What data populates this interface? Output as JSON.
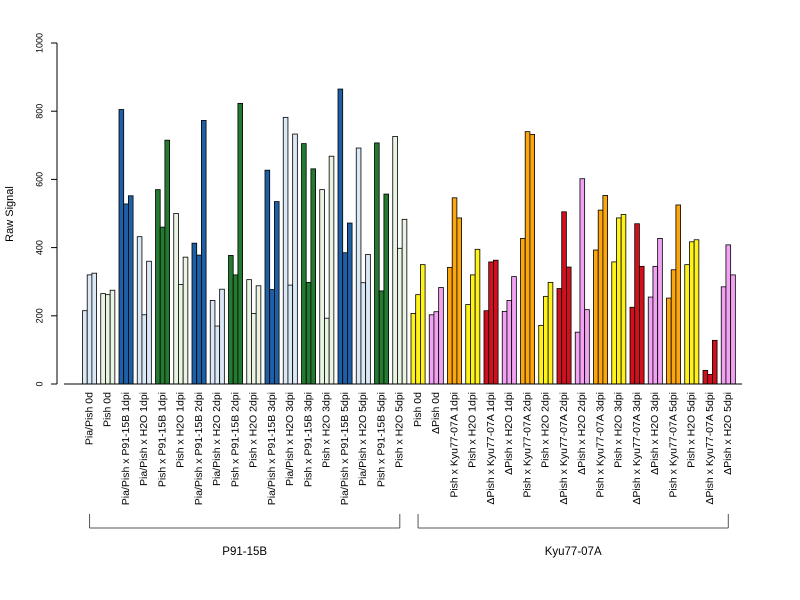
{
  "chart_data": {
    "type": "bar",
    "ylabel": "Raw Signal",
    "ylim": [
      0,
      1000
    ],
    "yticks": [
      "0",
      "200",
      "400",
      "600",
      "800",
      "1000"
    ],
    "grid": false,
    "legend": "none",
    "colors": {
      "light_blue": "#dbe8f6",
      "dark_blue": "#1f5fa6",
      "dark_green": "#247a31",
      "light_green": "#e9f4e3",
      "yellow": "#fff21a",
      "violet": "#f2a2f2",
      "orange": "#fca60e",
      "red": "#d1101d"
    },
    "categories": [
      {
        "label": "Pia/Pish 0d",
        "values": [
          215,
          320,
          325
        ],
        "color": "light_blue"
      },
      {
        "label": "Pish 0d",
        "values": [
          265,
          262,
          275
        ],
        "color": "light_green"
      },
      {
        "label": "Pia/Pish x P91-15B 1dpi",
        "values": [
          805,
          528,
          552
        ],
        "color": "dark_blue"
      },
      {
        "label": "Pia/Pish x H2O 1dpi",
        "values": [
          432,
          203,
          360
        ],
        "color": "light_blue"
      },
      {
        "label": "Pish x P91-15B 1dpi",
        "values": [
          570,
          460,
          715
        ],
        "color": "dark_green"
      },
      {
        "label": "Pish x H2O 1dpi",
        "values": [
          500,
          292,
          372
        ],
        "color": "light_green"
      },
      {
        "label": "Pia/Pish x P91-15B 2dpi",
        "values": [
          413,
          378,
          773
        ],
        "color": "dark_blue"
      },
      {
        "label": "Pia/Pish x H2O 2dpi",
        "values": [
          245,
          170,
          278
        ],
        "color": "light_blue"
      },
      {
        "label": "Pish x P91-15B 2dpi",
        "values": [
          377,
          320,
          823
        ],
        "color": "dark_green"
      },
      {
        "label": "Pish x H2O 2dpi",
        "values": [
          306,
          207,
          288
        ],
        "color": "light_green"
      },
      {
        "label": "Pia/Pish x P91-15B 3dpi",
        "values": [
          627,
          277,
          535
        ],
        "color": "dark_blue"
      },
      {
        "label": "Pia/Pish x H2O 3dpi",
        "values": [
          782,
          290,
          733
        ],
        "color": "light_blue"
      },
      {
        "label": "Pish x P91-15B 3dpi",
        "values": [
          705,
          298,
          631
        ],
        "color": "dark_green"
      },
      {
        "label": "Pish x H2O 3dpi",
        "values": [
          570,
          193,
          668
        ],
        "color": "light_green"
      },
      {
        "label": "Pia/Pish x P91-15B 5dpi",
        "values": [
          865,
          385,
          472
        ],
        "color": "dark_blue"
      },
      {
        "label": "Pia/Pish x H2O 5dpi",
        "values": [
          692,
          297,
          380
        ],
        "color": "light_blue"
      },
      {
        "label": "Pish x P91-15B 5dpi",
        "values": [
          707,
          273,
          557
        ],
        "color": "dark_green"
      },
      {
        "label": "Pish x H2O 5dpi",
        "values": [
          726,
          398,
          483
        ],
        "color": "light_green"
      },
      {
        "label": "Pish 0d",
        "values": [
          207,
          262,
          350
        ],
        "color": "yellow"
      },
      {
        "label": "ΔPish 0d",
        "values": [
          203,
          212,
          283
        ],
        "color": "violet"
      },
      {
        "label": "Pish x Kyu77-07A 1dpi",
        "values": [
          342,
          546,
          487
        ],
        "color": "orange"
      },
      {
        "label": "Pish x H2O 1dpi",
        "values": [
          233,
          320,
          395
        ],
        "color": "yellow"
      },
      {
        "label": "ΔPish x Kyu77-07A 1dpi",
        "values": [
          215,
          358,
          363
        ],
        "color": "red"
      },
      {
        "label": "ΔPish x H2O 1dpi",
        "values": [
          213,
          245,
          315
        ],
        "color": "violet"
      },
      {
        "label": "Pish x Kyu77-07A 2dpi",
        "values": [
          427,
          740,
          732
        ],
        "color": "orange"
      },
      {
        "label": "Pish x H2O 2dpi",
        "values": [
          172,
          257,
          298
        ],
        "color": "yellow"
      },
      {
        "label": "ΔPish x Kyu77-07A 2dpi",
        "values": [
          280,
          505,
          343
        ],
        "color": "red"
      },
      {
        "label": "ΔPish x H2O 2dpi",
        "values": [
          152,
          602,
          218
        ],
        "color": "violet"
      },
      {
        "label": "Pish x Kyu77-07A 3dpi",
        "values": [
          393,
          510,
          553
        ],
        "color": "orange"
      },
      {
        "label": "Pish x H2O 3dpi",
        "values": [
          358,
          487,
          497
        ],
        "color": "yellow"
      },
      {
        "label": "ΔPish x Kyu77-07A 3dpi",
        "values": [
          225,
          470,
          345
        ],
        "color": "red"
      },
      {
        "label": "ΔPish x H2O 3dpi",
        "values": [
          255,
          345,
          427
        ],
        "color": "violet"
      },
      {
        "label": "Pish x Kyu77-07A 5dpi",
        "values": [
          252,
          335,
          525
        ],
        "color": "orange"
      },
      {
        "label": "Pish x H2O 5dpi",
        "values": [
          350,
          417,
          423
        ],
        "color": "yellow"
      },
      {
        "label": "ΔPish x Kyu77-07A 5dpi",
        "values": [
          40,
          28,
          128
        ],
        "color": "red"
      },
      {
        "label": "ΔPish x H2O 5dpi",
        "values": [
          285,
          408,
          320
        ],
        "color": "violet"
      }
    ],
    "groups": [
      {
        "label": "P91-15B",
        "from": 0,
        "to": 17
      },
      {
        "label": "Kyu77-07A",
        "from": 18,
        "to": 35
      }
    ]
  }
}
